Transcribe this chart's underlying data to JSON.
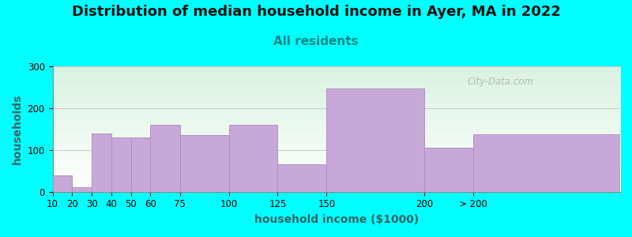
{
  "title": "Distribution of median household income in Ayer, MA in 2022",
  "subtitle": "All residents",
  "xlabel": "household income ($1000)",
  "ylabel": "households",
  "background_color": "#00FFFF",
  "bar_color": "#C8A8D8",
  "bar_edge_color": "#B090C0",
  "watermark": "City-Data.com",
  "title_fontsize": 13,
  "subtitle_fontsize": 11,
  "subtitle_color": "#008888",
  "axis_label_fontsize": 10,
  "tick_fontsize": 8.5,
  "ylim": [
    0,
    300
  ],
  "yticks": [
    0,
    100,
    200,
    300
  ],
  "bin_lefts": [
    10,
    20,
    30,
    40,
    50,
    60,
    75,
    100,
    125,
    150,
    200,
    225
  ],
  "bin_widths": [
    10,
    10,
    10,
    10,
    10,
    15,
    25,
    25,
    25,
    50,
    25,
    75
  ],
  "bin_heights": [
    40,
    10,
    140,
    130,
    130,
    160,
    135,
    160,
    65,
    248,
    105,
    138
  ],
  "xtick_positions": [
    10,
    20,
    30,
    40,
    50,
    60,
    75,
    100,
    125,
    150,
    200,
    225
  ],
  "xtick_labels": [
    "10",
    "20",
    "30",
    "40",
    "50",
    "60",
    "75",
    "100",
    "125",
    "150",
    "200",
    "> 200"
  ],
  "xmin": 10,
  "xmax": 300
}
